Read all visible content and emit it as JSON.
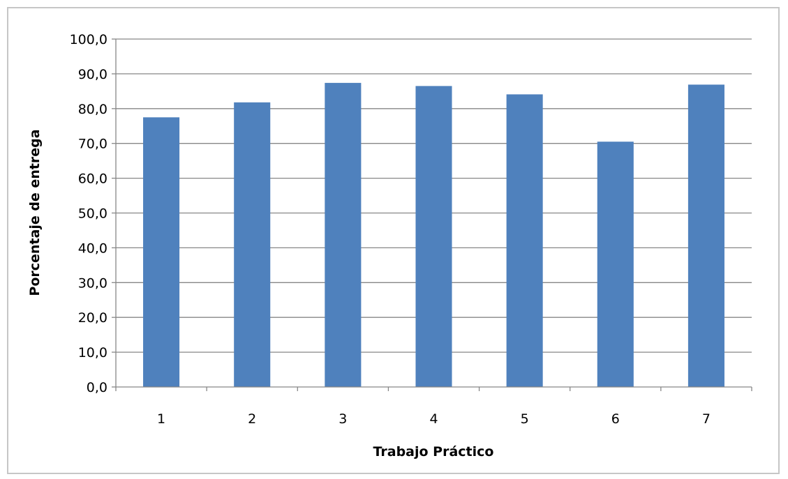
{
  "chart_data": {
    "type": "bar",
    "title": "",
    "xlabel": "Trabajo Práctico",
    "ylabel": "Porcentaje de entrega",
    "categories": [
      "1",
      "2",
      "3",
      "4",
      "5",
      "6",
      "7"
    ],
    "values": [
      77.5,
      81.8,
      87.4,
      86.5,
      84.1,
      70.5,
      86.9
    ],
    "ylim": [
      0,
      100
    ],
    "yticks": [
      "0,0",
      "10,0",
      "20,0",
      "30,0",
      "40,0",
      "50,0",
      "60,0",
      "70,0",
      "80,0",
      "90,0",
      "100,0"
    ],
    "grid": true,
    "legend": "none",
    "bar_color": "#4f81bd",
    "grid_color": "#878787"
  }
}
